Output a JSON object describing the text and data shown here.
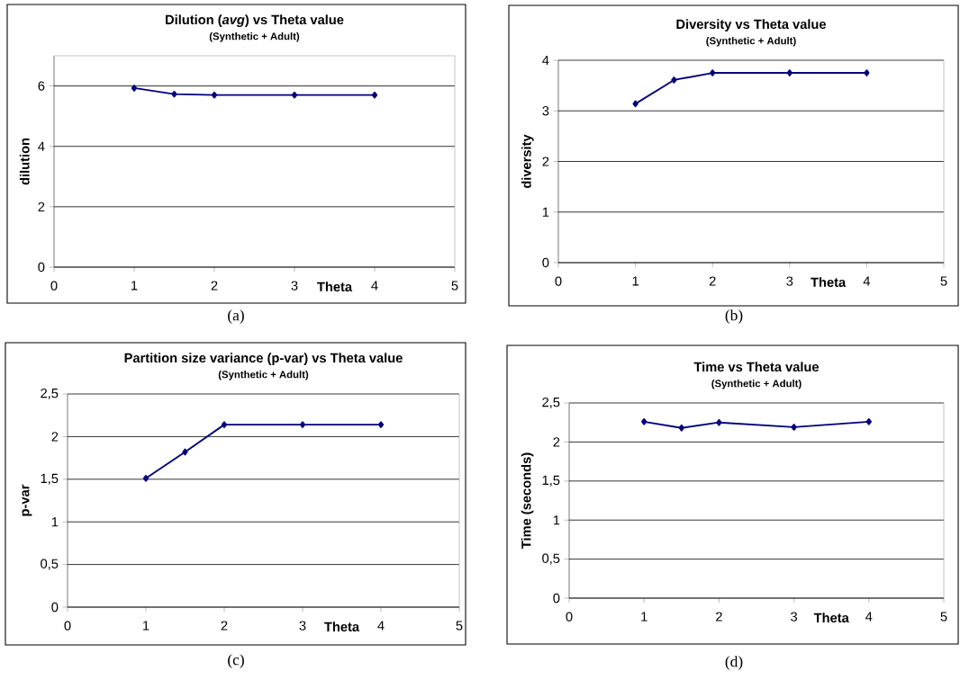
{
  "chart_data": [
    {
      "type": "line",
      "title": "Dilution (*avg*) vs Theta value",
      "subtitle": "(Synthetic + Adult)",
      "xlabel": "Theta",
      "ylabel": "dilution",
      "x": [
        1,
        1.5,
        2,
        3,
        4
      ],
      "series": [
        {
          "color": "#000080",
          "values": [
            5.93,
            5.73,
            5.7,
            5.7,
            5.7
          ]
        }
      ],
      "xlim": [
        0,
        5
      ],
      "xticks": [
        0,
        1,
        2,
        3,
        4,
        5
      ],
      "ylim": [
        0,
        7
      ],
      "yticks": [
        0,
        2,
        4,
        6
      ],
      "grid": "y",
      "marker": "diamond",
      "line_style": "solid",
      "annotations": [
        "(a)"
      ]
    },
    {
      "type": "line",
      "title": "Diversity vs Theta value",
      "subtitle": "(Synthetic + Adult)",
      "xlabel": "Theta",
      "ylabel": "diversity",
      "x": [
        1,
        1.5,
        2,
        3,
        4
      ],
      "series": [
        {
          "color": "#000080",
          "values": [
            3.14,
            3.61,
            3.75,
            3.75,
            3.75
          ]
        }
      ],
      "xlim": [
        0,
        5
      ],
      "xticks": [
        0,
        1,
        2,
        3,
        4,
        5
      ],
      "ylim": [
        0,
        4
      ],
      "yticks": [
        0,
        1,
        2,
        3,
        4
      ],
      "grid": "y",
      "marker": "diamond",
      "line_style": "solid",
      "annotations": [
        "(b)"
      ]
    },
    {
      "type": "line",
      "title": "Partition size variance (p-var) vs Theta value",
      "subtitle": "(Synthetic + Adult)",
      "xlabel": "Theta",
      "ylabel": "p-var",
      "x": [
        1,
        1.5,
        2,
        3,
        4
      ],
      "series": [
        {
          "color": "#000080",
          "values": [
            1.51,
            1.82,
            2.14,
            2.14,
            2.14
          ]
        }
      ],
      "xlim": [
        0,
        5
      ],
      "xticks": [
        0,
        1,
        2,
        3,
        4,
        5
      ],
      "ylim": [
        0,
        2.5
      ],
      "yticks": [
        0,
        {
          "value": 0.5,
          "label": "0,5"
        },
        1,
        {
          "value": 1.5,
          "label": "1,5"
        },
        2,
        {
          "value": 2.5,
          "label": "2,5"
        }
      ],
      "grid": "y",
      "marker": "diamond",
      "line_style": "solid",
      "annotations": [
        "(c)"
      ]
    },
    {
      "type": "line",
      "title": "Time vs Theta value",
      "subtitle": "(Synthetic + Adult)",
      "xlabel": "Theta",
      "ylabel": "Time (seconds)",
      "x": [
        1,
        1.5,
        2,
        3,
        4
      ],
      "series": [
        {
          "color": "#000080",
          "values": [
            2.26,
            2.18,
            2.25,
            2.19,
            2.26
          ]
        }
      ],
      "xlim": [
        0,
        5
      ],
      "xticks": [
        0,
        1,
        2,
        3,
        4,
        5
      ],
      "ylim": [
        0,
        2.5
      ],
      "yticks": [
        0,
        {
          "value": 0.5,
          "label": "0,5"
        },
        1,
        {
          "value": 1.5,
          "label": "1,5"
        },
        2,
        {
          "value": 2.5,
          "label": "2,5"
        }
      ],
      "grid": "y",
      "marker": "diamond",
      "line_style": "solid",
      "annotations": [
        "(d)"
      ]
    }
  ]
}
